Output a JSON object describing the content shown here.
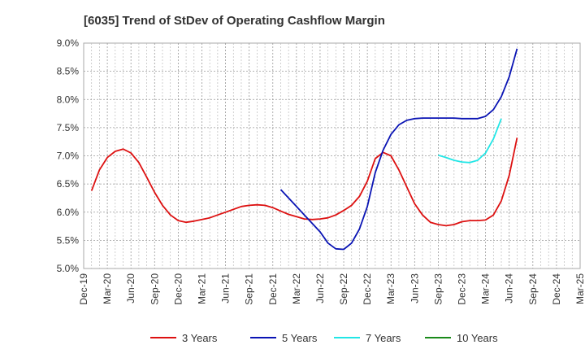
{
  "chart_data": {
    "type": "line",
    "title": "[6035]  Trend of StDev of Operating Cashflow Margin",
    "xlabel": "",
    "ylabel": "",
    "ylim": [
      5.0,
      9.0
    ],
    "y_ticks": [
      "5.0%",
      "5.5%",
      "6.0%",
      "6.5%",
      "7.0%",
      "7.5%",
      "8.0%",
      "8.5%",
      "9.0%"
    ],
    "x_ticks": [
      "Dec-19",
      "Mar-20",
      "Jun-20",
      "Sep-20",
      "Dec-20",
      "Mar-21",
      "Jun-21",
      "Sep-21",
      "Dec-21",
      "Mar-22",
      "Jun-22",
      "Sep-22",
      "Dec-22",
      "Mar-23",
      "Jun-23",
      "Sep-23",
      "Dec-23",
      "Mar-24",
      "Jun-24",
      "Sep-24",
      "Dec-24",
      "Mar-25"
    ],
    "grid": true,
    "legend_position": "bottom",
    "series": [
      {
        "name": "3 Years",
        "color": "#dd1111",
        "points": [
          [
            "Jan-20",
            6.38
          ],
          [
            "Feb-20",
            6.75
          ],
          [
            "Mar-20",
            6.97
          ],
          [
            "Apr-20",
            7.08
          ],
          [
            "May-20",
            7.12
          ],
          [
            "Jun-20",
            7.05
          ],
          [
            "Jul-20",
            6.88
          ],
          [
            "Aug-20",
            6.62
          ],
          [
            "Sep-20",
            6.35
          ],
          [
            "Oct-20",
            6.12
          ],
          [
            "Nov-20",
            5.95
          ],
          [
            "Dec-20",
            5.85
          ],
          [
            "Jan-21",
            5.82
          ],
          [
            "Feb-21",
            5.84
          ],
          [
            "Mar-21",
            5.87
          ],
          [
            "Apr-21",
            5.9
          ],
          [
            "May-21",
            5.95
          ],
          [
            "Jun-21",
            6.0
          ],
          [
            "Jul-21",
            6.05
          ],
          [
            "Aug-21",
            6.1
          ],
          [
            "Sep-21",
            6.12
          ],
          [
            "Oct-21",
            6.13
          ],
          [
            "Nov-21",
            6.12
          ],
          [
            "Dec-21",
            6.08
          ],
          [
            "Jan-22",
            6.02
          ],
          [
            "Feb-22",
            5.96
          ],
          [
            "Mar-22",
            5.92
          ],
          [
            "Apr-22",
            5.88
          ],
          [
            "May-22",
            5.87
          ],
          [
            "Jun-22",
            5.88
          ],
          [
            "Jul-22",
            5.9
          ],
          [
            "Aug-22",
            5.95
          ],
          [
            "Sep-22",
            6.03
          ],
          [
            "Oct-22",
            6.12
          ],
          [
            "Nov-22",
            6.28
          ],
          [
            "Dec-22",
            6.55
          ],
          [
            "Jan-23",
            6.95
          ],
          [
            "Feb-23",
            7.06
          ],
          [
            "Mar-23",
            7.0
          ],
          [
            "Apr-23",
            6.75
          ],
          [
            "May-23",
            6.45
          ],
          [
            "Jun-23",
            6.15
          ],
          [
            "Jul-23",
            5.95
          ],
          [
            "Aug-23",
            5.82
          ],
          [
            "Sep-23",
            5.78
          ],
          [
            "Oct-23",
            5.76
          ],
          [
            "Nov-23",
            5.78
          ],
          [
            "Dec-23",
            5.83
          ],
          [
            "Jan-24",
            5.85
          ],
          [
            "Feb-24",
            5.85
          ],
          [
            "Mar-24",
            5.86
          ],
          [
            "Apr-24",
            5.95
          ],
          [
            "May-24",
            6.2
          ],
          [
            "Jun-24",
            6.65
          ],
          [
            "Jul-24",
            7.32
          ]
        ]
      },
      {
        "name": "5 Years",
        "color": "#0a14b4",
        "points": [
          [
            "Jan-22",
            6.4
          ],
          [
            "Feb-22",
            6.25
          ],
          [
            "Mar-22",
            6.1
          ],
          [
            "Apr-22",
            5.95
          ],
          [
            "May-22",
            5.8
          ],
          [
            "Jun-22",
            5.65
          ],
          [
            "Jul-22",
            5.45
          ],
          [
            "Aug-22",
            5.35
          ],
          [
            "Sep-22",
            5.34
          ],
          [
            "Oct-22",
            5.45
          ],
          [
            "Nov-22",
            5.7
          ],
          [
            "Dec-22",
            6.1
          ],
          [
            "Jan-23",
            6.7
          ],
          [
            "Feb-23",
            7.1
          ],
          [
            "Mar-23",
            7.38
          ],
          [
            "Apr-23",
            7.55
          ],
          [
            "May-23",
            7.63
          ],
          [
            "Jun-23",
            7.66
          ],
          [
            "Jul-23",
            7.67
          ],
          [
            "Aug-23",
            7.67
          ],
          [
            "Sep-23",
            7.67
          ],
          [
            "Oct-23",
            7.67
          ],
          [
            "Nov-23",
            7.67
          ],
          [
            "Dec-23",
            7.66
          ],
          [
            "Jan-24",
            7.66
          ],
          [
            "Feb-24",
            7.66
          ],
          [
            "Mar-24",
            7.7
          ],
          [
            "Apr-24",
            7.82
          ],
          [
            "May-24",
            8.05
          ],
          [
            "Jun-24",
            8.4
          ],
          [
            "Jul-24",
            8.9
          ]
        ]
      },
      {
        "name": "7 Years",
        "color": "#22e6e6",
        "points": [
          [
            "Sep-23",
            7.01
          ],
          [
            "Oct-23",
            6.97
          ],
          [
            "Nov-23",
            6.92
          ],
          [
            "Dec-23",
            6.89
          ],
          [
            "Jan-24",
            6.88
          ],
          [
            "Feb-24",
            6.92
          ],
          [
            "Mar-24",
            7.05
          ],
          [
            "Apr-24",
            7.3
          ],
          [
            "May-24",
            7.66
          ]
        ]
      },
      {
        "name": "10 Years",
        "color": "#1a8a1a",
        "points": []
      }
    ]
  }
}
